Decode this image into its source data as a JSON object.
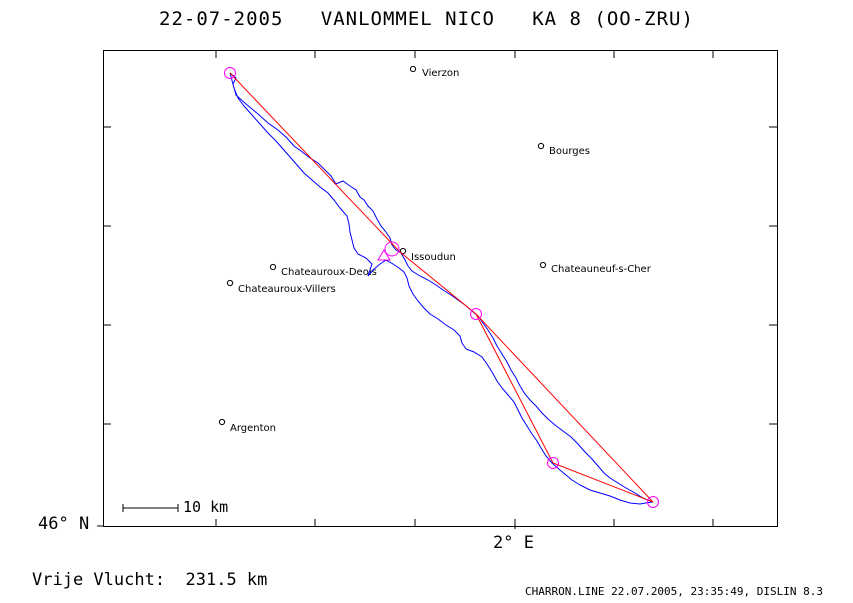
{
  "title": "22-07-2005   VANLOMMEL NICO   KA 8 (OO-ZRU)",
  "axes": {
    "lat_label": "46° N",
    "lon_label": "2° E"
  },
  "scale_label": "10 km",
  "distance_text": "Vrije Vlucht:  231.5 km",
  "footer_text": "CHARRON.LINE 22.07.2005, 23:35:49, DISLIN 8.3",
  "colors": {
    "track": "#0000ff",
    "task": "#ff0000",
    "turnpoint": "#ff00ff",
    "frame": "#000000"
  },
  "cities": [
    {
      "name": "Vierzon"
    },
    {
      "name": "Bourges"
    },
    {
      "name": "Issoudun"
    },
    {
      "name": "Chateauroux-Deols"
    },
    {
      "name": "Chateauneuf-s-Cher"
    },
    {
      "name": "Chateauroux-Villers"
    },
    {
      "name": "Argenton"
    }
  ]
}
